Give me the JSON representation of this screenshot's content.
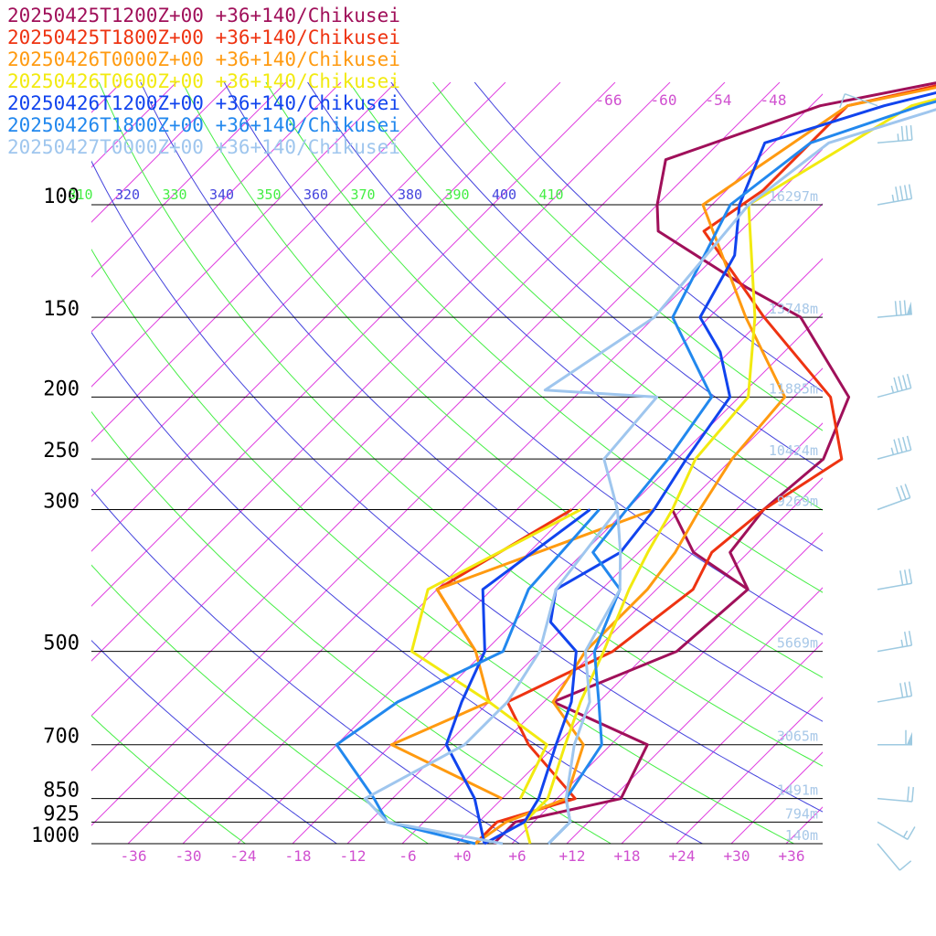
{
  "chart_data": {
    "type": "line",
    "title": "",
    "legend_placement": "top-left",
    "x_axis": {
      "min": -40,
      "max": 40,
      "ticks": [
        "-36",
        "-30",
        "-24",
        "-18",
        "-12",
        "-6",
        "+0",
        "+6",
        "+12",
        "+18",
        "+24",
        "+30",
        "+36"
      ],
      "tick_values": [
        -36,
        -30,
        -24,
        -18,
        -12,
        -6,
        0,
        6,
        12,
        18,
        24,
        30,
        36
      ]
    },
    "y_axis": {
      "scale": "log-pressure",
      "min": 100,
      "max": 1000,
      "ticks": [
        100,
        150,
        200,
        250,
        300,
        500,
        700,
        850,
        925,
        1000
      ]
    },
    "heights": [
      {
        "p": 100,
        "label": "16297m"
      },
      {
        "p": 150,
        "label": "13748m"
      },
      {
        "p": 200,
        "label": "11885m"
      },
      {
        "p": 250,
        "label": "10424m"
      },
      {
        "p": 300,
        "label": "9269m"
      },
      {
        "p": 500,
        "label": "5669m"
      },
      {
        "p": 700,
        "label": "3065m"
      },
      {
        "p": 850,
        "label": "1491m"
      },
      {
        "p": 925,
        "label": "794m"
      },
      {
        "p": 1000,
        "label": "140m"
      }
    ],
    "theta_labels": [
      "310",
      "320",
      "330",
      "340",
      "350",
      "360",
      "370",
      "380",
      "390",
      "400",
      "410"
    ],
    "isotherm_labels": [
      "-66",
      "-60",
      "-54",
      "-48"
    ],
    "background_colors": {
      "isotherm": "#e040e0",
      "theta_green": "#44ee44",
      "theta_blue": "#4444dd",
      "isobar": "#000000",
      "label_magenta": "#d050d0",
      "height_label": "#a8c8e8",
      "wind_barb": "#9ecae1"
    },
    "series": [
      {
        "name": "20250425T1200Z+00 +36+140/Chikusei",
        "color": "#a0105a",
        "temp_points": [
          [
            1000,
            4
          ],
          [
            925,
            4
          ],
          [
            850,
            13
          ],
          [
            700,
            10
          ],
          [
            600,
            -5
          ],
          [
            500,
            3
          ],
          [
            400,
            4
          ],
          [
            350,
            -2
          ],
          [
            300,
            -3
          ],
          [
            250,
            -2
          ],
          [
            200,
            -6
          ],
          [
            150,
            -20
          ],
          [
            135,
            -29
          ],
          [
            110,
            -45
          ],
          [
            100,
            -48
          ],
          [
            85,
            -52
          ],
          [
            70,
            -41
          ],
          [
            60,
            -22
          ],
          [
            55,
            -12
          ]
        ],
        "dew_points": [
          [
            400,
            4
          ],
          [
            350,
            -6
          ],
          [
            300,
            -13
          ]
        ]
      },
      {
        "name": "20250425T1800Z+00 +36+140/Chikusei",
        "color": "#ee3311",
        "temp_points": [
          [
            1000,
            2
          ],
          [
            925,
            2
          ],
          [
            850,
            8
          ],
          [
            700,
            -3
          ],
          [
            600,
            -10
          ],
          [
            500,
            -4
          ],
          [
            400,
            -2
          ],
          [
            350,
            -4
          ],
          [
            300,
            -3
          ],
          [
            250,
            0
          ],
          [
            200,
            -8
          ],
          [
            150,
            -24
          ],
          [
            110,
            -40
          ],
          [
            95,
            -38
          ],
          [
            70,
            -38
          ],
          [
            60,
            -22
          ],
          [
            55,
            -12
          ]
        ],
        "dew_points": [
          [
            500,
            -19
          ],
          [
            400,
            -30
          ],
          [
            300,
            -24
          ]
        ]
      },
      {
        "name": "20250426T0000Z+00 +36+140/Chikusei",
        "color": "#ff9a10",
        "temp_points": [
          [
            1000,
            2
          ],
          [
            925,
            3
          ],
          [
            850,
            7
          ],
          [
            700,
            3
          ],
          [
            600,
            -5
          ],
          [
            500,
            -7
          ],
          [
            400,
            -7
          ],
          [
            350,
            -8
          ],
          [
            300,
            -10
          ],
          [
            250,
            -12
          ],
          [
            200,
            -13
          ],
          [
            150,
            -26
          ],
          [
            100,
            -43
          ],
          [
            70,
            -38
          ],
          [
            60,
            -20
          ],
          [
            55,
            -10
          ]
        ],
        "dew_points": [
          [
            850,
            0
          ],
          [
            700,
            -18
          ],
          [
            600,
            -12
          ],
          [
            500,
            -19
          ],
          [
            400,
            -30
          ],
          [
            300,
            -15
          ]
        ]
      },
      {
        "name": "20250426T0600Z+00 +36+140/Chikusei",
        "color": "#f2ea10",
        "temp_points": [
          [
            1000,
            8
          ],
          [
            925,
            5
          ],
          [
            850,
            5
          ],
          [
            700,
            1
          ],
          [
            600,
            -2
          ],
          [
            500,
            -5
          ],
          [
            400,
            -9
          ],
          [
            350,
            -11
          ],
          [
            300,
            -13
          ],
          [
            250,
            -16
          ],
          [
            200,
            -17
          ],
          [
            150,
            -25
          ],
          [
            100,
            -38
          ],
          [
            70,
            -31
          ],
          [
            60,
            -18
          ],
          [
            55,
            -10
          ]
        ],
        "dew_points": [
          [
            850,
            2
          ],
          [
            700,
            -1
          ],
          [
            600,
            -12
          ],
          [
            500,
            -26
          ],
          [
            400,
            -31
          ],
          [
            300,
            -23
          ]
        ]
      },
      {
        "name": "20250426T1200Z+00 +36+140/Chikusei",
        "color": "#1144ee",
        "temp_points": [
          [
            1000,
            3
          ],
          [
            925,
            5
          ],
          [
            850,
            4
          ],
          [
            700,
            0
          ],
          [
            600,
            -3
          ],
          [
            500,
            -8
          ],
          [
            450,
            -14
          ],
          [
            400,
            -17
          ],
          [
            350,
            -14
          ],
          [
            300,
            -15
          ],
          [
            250,
            -17
          ],
          [
            200,
            -19
          ],
          [
            170,
            -25
          ],
          [
            150,
            -31
          ],
          [
            120,
            -34
          ],
          [
            100,
            -39
          ],
          [
            80,
            -43
          ],
          [
            70,
            -34
          ],
          [
            60,
            -20
          ],
          [
            55,
            -11
          ]
        ],
        "dew_points": [
          [
            1000,
            3
          ],
          [
            850,
            -3
          ],
          [
            700,
            -12
          ],
          [
            600,
            -15
          ],
          [
            500,
            -18
          ],
          [
            400,
            -25
          ],
          [
            300,
            -22
          ]
        ]
      },
      {
        "name": "20250426T1800Z+00 +36+140/Chikusei",
        "color": "#2288ee",
        "temp_points": [
          [
            1000,
            10
          ],
          [
            925,
            10
          ],
          [
            850,
            7
          ],
          [
            700,
            5
          ],
          [
            600,
            0
          ],
          [
            500,
            -6
          ],
          [
            400,
            -10
          ],
          [
            350,
            -17
          ],
          [
            300,
            -18
          ],
          [
            250,
            -19
          ],
          [
            200,
            -21
          ],
          [
            150,
            -34
          ],
          [
            100,
            -40
          ],
          [
            80,
            -38
          ],
          [
            70,
            -30
          ],
          [
            60,
            -18
          ],
          [
            55,
            -10
          ]
        ],
        "dew_points": [
          [
            1000,
            2
          ],
          [
            925,
            -10
          ],
          [
            850,
            -14
          ],
          [
            700,
            -24
          ],
          [
            600,
            -22
          ],
          [
            500,
            -16
          ],
          [
            400,
            -20
          ],
          [
            300,
            -21
          ]
        ]
      },
      {
        "name": "20250427T0000Z+00 +36+140/Chikusei",
        "color": "#9fc6ee",
        "temp_points": [
          [
            1000,
            10
          ],
          [
            925,
            10
          ],
          [
            850,
            7
          ],
          [
            700,
            2
          ],
          [
            600,
            -1
          ],
          [
            500,
            -7
          ],
          [
            400,
            -10
          ],
          [
            350,
            -14
          ],
          [
            300,
            -19
          ],
          [
            250,
            -26
          ],
          [
            200,
            -27
          ],
          [
            195,
            -40
          ],
          [
            150,
            -36
          ],
          [
            100,
            -38
          ],
          [
            80,
            -36
          ],
          [
            70,
            -27
          ],
          [
            60,
            -17
          ],
          [
            55,
            -10
          ]
        ],
        "dew_points": [
          [
            1000,
            5
          ],
          [
            925,
            -10
          ],
          [
            850,
            -15
          ],
          [
            700,
            -10
          ],
          [
            600,
            -10
          ],
          [
            500,
            -12
          ],
          [
            400,
            -17
          ],
          [
            300,
            -19
          ]
        ]
      }
    ],
    "wind_barbs": [
      {
        "p": 1000,
        "dir": 220,
        "speed": 10
      },
      {
        "p": 925,
        "dir": 240,
        "speed": 15
      },
      {
        "p": 850,
        "dir": 265,
        "speed": 20
      },
      {
        "p": 700,
        "dir": 270,
        "speed": 60
      },
      {
        "p": 600,
        "dir": 280,
        "speed": 30
      },
      {
        "p": 500,
        "dir": 280,
        "speed": 25
      },
      {
        "p": 400,
        "dir": 280,
        "speed": 30
      },
      {
        "p": 300,
        "dir": 290,
        "speed": 30
      },
      {
        "p": 250,
        "dir": 285,
        "speed": 45
      },
      {
        "p": 200,
        "dir": 285,
        "speed": 45
      },
      {
        "p": 150,
        "dir": 275,
        "speed": 80
      },
      {
        "p": 100,
        "dir": 280,
        "speed": 45
      },
      {
        "p": 80,
        "dir": 275,
        "speed": 35
      },
      {
        "p": 70,
        "dir": 70,
        "speed": 10
      }
    ]
  }
}
